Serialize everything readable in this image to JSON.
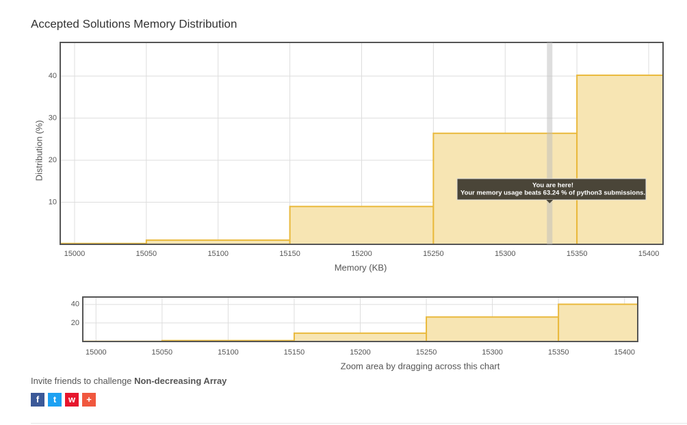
{
  "title": "Accepted Solutions Memory Distribution",
  "chart_data": {
    "type": "histogram",
    "bins": [
      14950,
      15050,
      15150,
      15250,
      15350,
      15450
    ],
    "values": [
      0.2,
      1.0,
      9.0,
      26.4,
      40.2
    ],
    "color": "#f7e5b3",
    "edge_color": "#e9b93c",
    "xlim": [
      14990,
      15410
    ],
    "xticks": [
      15000,
      15050,
      15100,
      15150,
      15200,
      15250,
      15300,
      15350,
      15400
    ],
    "ylim": [
      0,
      48
    ],
    "yticks": [
      10,
      20,
      30,
      40
    ],
    "grid": true,
    "x_label": "Memory (KB)",
    "y_label": "Distribution (%)",
    "annotation": {
      "x": 15331,
      "lines": [
        "You are here!",
        "Your memory usage beats 63.24 % of python3 submissions."
      ]
    },
    "navigator": {
      "yticks": [
        20,
        40
      ],
      "label": "Zoom area by dragging across this chart"
    }
  },
  "footer": {
    "invite": "Invite friends to challenge",
    "problem": "Non-decreasing Array"
  }
}
